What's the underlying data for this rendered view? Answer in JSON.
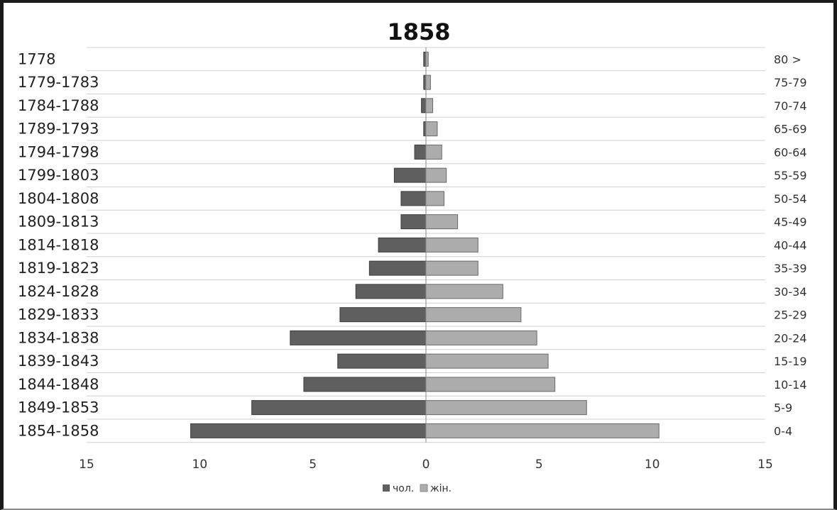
{
  "chart_data": {
    "type": "bar",
    "orientation": "horizontal",
    "layout": "population-pyramid",
    "title": "1858",
    "categories_left": [
      "1778",
      "1779-1783",
      "1784-1788",
      "1789-1793",
      "1794-1798",
      "1799-1803",
      "1804-1808",
      "1809-1813",
      "1814-1818",
      "1819-1823",
      "1824-1828",
      "1829-1833",
      "1834-1838",
      "1839-1843",
      "1844-1848",
      "1849-1853",
      "1854-1858"
    ],
    "categories_right": [
      "80 >",
      "75-79",
      "70-74",
      "65-69",
      "60-64",
      "55-59",
      "50-54",
      "45-49",
      "40-44",
      "35-39",
      "30-34",
      "25-29",
      "20-24",
      "15-19",
      "10-14",
      "5-9",
      "0-4"
    ],
    "series": [
      {
        "name": "чол.",
        "color": "#5f5f5f",
        "side": "left",
        "values": [
          0.1,
          0.1,
          0.2,
          0.1,
          0.5,
          1.4,
          1.1,
          1.1,
          2.1,
          2.5,
          3.1,
          3.8,
          6.0,
          3.9,
          5.4,
          7.7,
          10.4
        ]
      },
      {
        "name": "жін.",
        "color": "#acacac",
        "side": "right",
        "values": [
          0.1,
          0.2,
          0.3,
          0.5,
          0.7,
          0.9,
          0.8,
          1.4,
          2.3,
          2.3,
          3.4,
          4.2,
          4.9,
          5.4,
          5.7,
          7.1,
          10.3
        ]
      }
    ],
    "xlim": [
      -15,
      15
    ],
    "xticks": [
      -15,
      -10,
      -5,
      0,
      5,
      10,
      15
    ],
    "xtick_labels": [
      "15",
      "10",
      "5",
      "0",
      "5",
      "10",
      "15"
    ],
    "grid": "horizontal",
    "legend": "bottom"
  }
}
